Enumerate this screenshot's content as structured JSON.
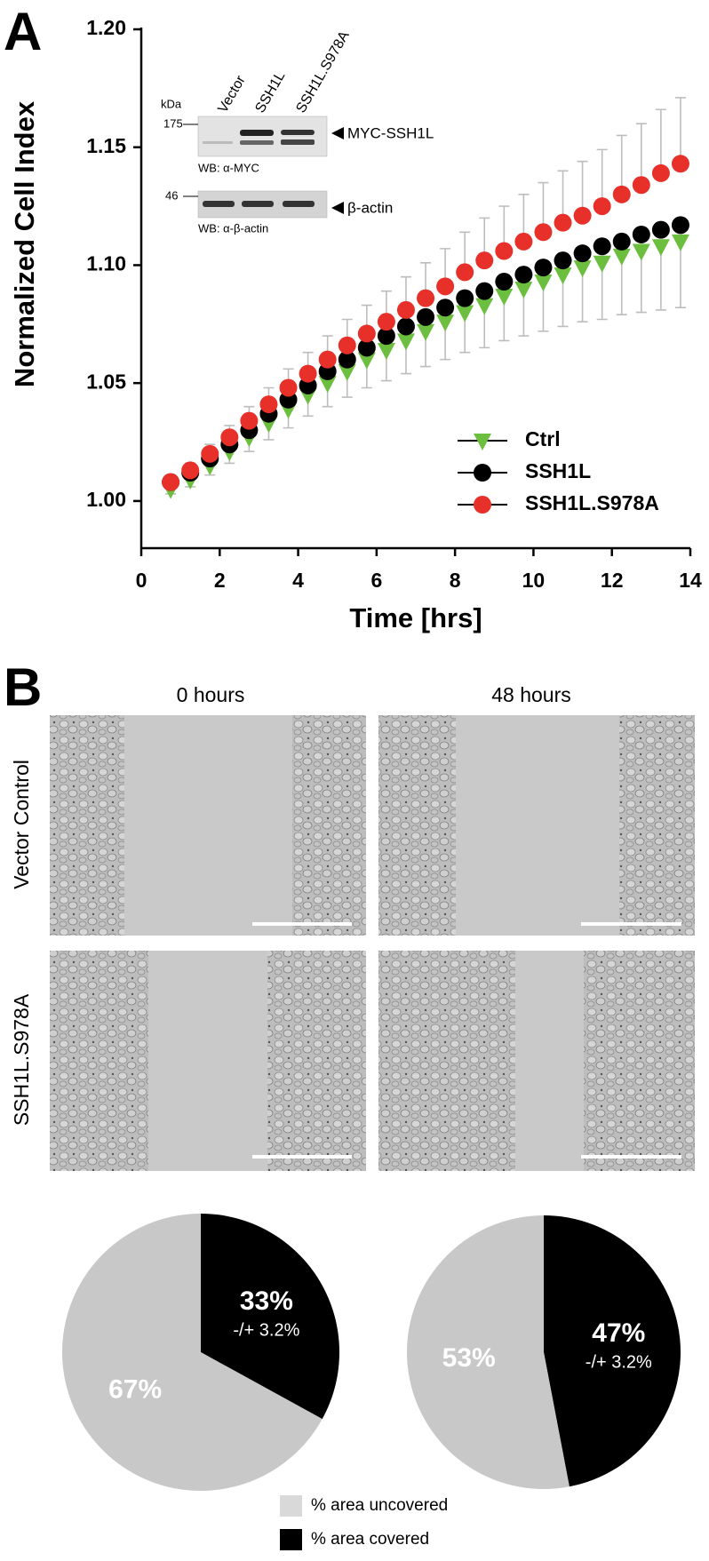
{
  "panel_labels": [
    "A",
    "B"
  ],
  "chart_data": [
    {
      "type": "scatter",
      "xlabel": "Time [hrs]",
      "ylabel": "Normalized Cell Index",
      "xlim": [
        0,
        14
      ],
      "ylim": [
        0.98,
        1.2
      ],
      "xticks": [
        0,
        2,
        4,
        6,
        8,
        10,
        12,
        14
      ],
      "yticks": [
        {
          "value": 1,
          "label": "1.00"
        },
        1.05,
        {
          "value": 1.1,
          "label": "1.10"
        },
        1.15,
        {
          "value": 1.2,
          "label": "1.20"
        }
      ],
      "legend": "lower right",
      "x": [
        0.75,
        1.25,
        1.75,
        2.25,
        2.75,
        3.25,
        3.75,
        4.25,
        4.75,
        5.25,
        5.75,
        6.25,
        6.75,
        7.25,
        7.75,
        8.25,
        8.75,
        9.25,
        9.75,
        10.25,
        10.75,
        11.25,
        11.75,
        12.25,
        12.75,
        13.25,
        13.75
      ],
      "series": [
        {
          "name": "Ctrl",
          "color": "#6cbf3e",
          "marker": "triangle-down",
          "error_direction": "down",
          "values": [
            1.005,
            1.009,
            1.015,
            1.021,
            1.027,
            1.033,
            1.039,
            1.045,
            1.05,
            1.055,
            1.06,
            1.064,
            1.068,
            1.072,
            1.076,
            1.08,
            1.083,
            1.087,
            1.09,
            1.093,
            1.096,
            1.099,
            1.101,
            1.104,
            1.106,
            1.108,
            1.11
          ],
          "errors": [
            0.002,
            0.003,
            0.004,
            0.005,
            0.006,
            0.007,
            0.008,
            0.009,
            0.01,
            0.011,
            0.012,
            0.013,
            0.014,
            0.015,
            0.016,
            0.017,
            0.018,
            0.019,
            0.02,
            0.021,
            0.022,
            0.023,
            0.024,
            0.025,
            0.026,
            0.027,
            0.028
          ]
        },
        {
          "name": "SSH1L",
          "color": "#000000",
          "marker": "circle",
          "values": [
            1.008,
            1.012,
            1.018,
            1.024,
            1.03,
            1.037,
            1.043,
            1.049,
            1.055,
            1.06,
            1.065,
            1.07,
            1.074,
            1.078,
            1.082,
            1.086,
            1.089,
            1.093,
            1.096,
            1.099,
            1.102,
            1.105,
            1.108,
            1.11,
            1.113,
            1.115,
            1.117
          ]
        },
        {
          "name": "SSH1L.S978A",
          "color": "#e8302a",
          "marker": "circle",
          "error_direction": "up",
          "values": [
            1.008,
            1.013,
            1.02,
            1.027,
            1.034,
            1.041,
            1.048,
            1.054,
            1.06,
            1.066,
            1.071,
            1.076,
            1.081,
            1.086,
            1.091,
            1.097,
            1.102,
            1.106,
            1.11,
            1.114,
            1.118,
            1.121,
            1.125,
            1.13,
            1.134,
            1.139,
            1.143
          ],
          "errors": [
            0.002,
            0.003,
            0.004,
            0.005,
            0.006,
            0.007,
            0.008,
            0.009,
            0.01,
            0.011,
            0.012,
            0.013,
            0.014,
            0.015,
            0.016,
            0.017,
            0.018,
            0.019,
            0.02,
            0.021,
            0.022,
            0.023,
            0.024,
            0.025,
            0.026,
            0.027,
            0.028
          ]
        }
      ]
    },
    {
      "type": "pie",
      "values": [
        33,
        67
      ],
      "colors": [
        "#000000",
        "#c8c8c8"
      ],
      "value_labels": [
        "33%",
        "67%"
      ],
      "annotations": [
        "-/+ 3.2%",
        null
      ]
    },
    {
      "type": "pie",
      "values": [
        47,
        53
      ],
      "colors": [
        "#000000",
        "#c8c8c8"
      ],
      "value_labels": [
        "47%",
        "53%"
      ],
      "annotations": [
        "-/+ 3.2%",
        null
      ]
    }
  ],
  "blot": {
    "unit": "kDa",
    "lanes": [
      "Vector",
      "SSH1L",
      "SSH1L.S978A"
    ],
    "markers": [
      "175",
      "46"
    ],
    "bands": [
      "MYC-SSH1L",
      "β-actin"
    ],
    "antibodies": [
      "WB: α-MYC",
      "WB: α-β-actin"
    ]
  },
  "scratch_assay": {
    "columns": [
      "0 hours",
      "48 hours"
    ],
    "rows": [
      "Vector Control",
      "SSH1L.S978A"
    ]
  },
  "pie_legend": {
    "labels": [
      "% area uncovered",
      "% area covered"
    ],
    "colors": [
      "#d9d9d9",
      "#000000"
    ]
  }
}
